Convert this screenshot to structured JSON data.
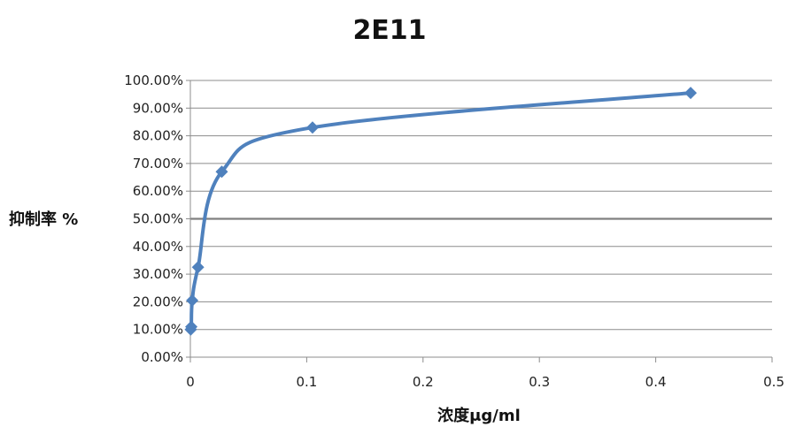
{
  "chart_data": {
    "type": "scatter",
    "title": "2E11",
    "xlabel": "浓度μg/ml",
    "ylabel": "抑制率 %",
    "xlim": [
      0,
      0.5
    ],
    "ylim": [
      0,
      1
    ],
    "x_ticks": [
      "0",
      "0.1",
      "0.2",
      "0.3",
      "0.4",
      "0.5"
    ],
    "y_ticks": [
      "0.00%",
      "10.00%",
      "20.00%",
      "30.00%",
      "40.00%",
      "50.00%",
      "60.00%",
      "70.00%",
      "80.00%",
      "90.00%",
      "100.00%"
    ],
    "grid": true,
    "line_style": "smooth",
    "series": [
      {
        "x": [
          0.0003,
          0.0008,
          0.0016,
          0.0066,
          0.027,
          0.105,
          0.43
        ],
        "y": [
          0.1,
          0.11,
          0.205,
          0.325,
          0.67,
          0.83,
          0.955
        ],
        "color": "#4F81BD",
        "marker": "diamond"
      }
    ]
  }
}
